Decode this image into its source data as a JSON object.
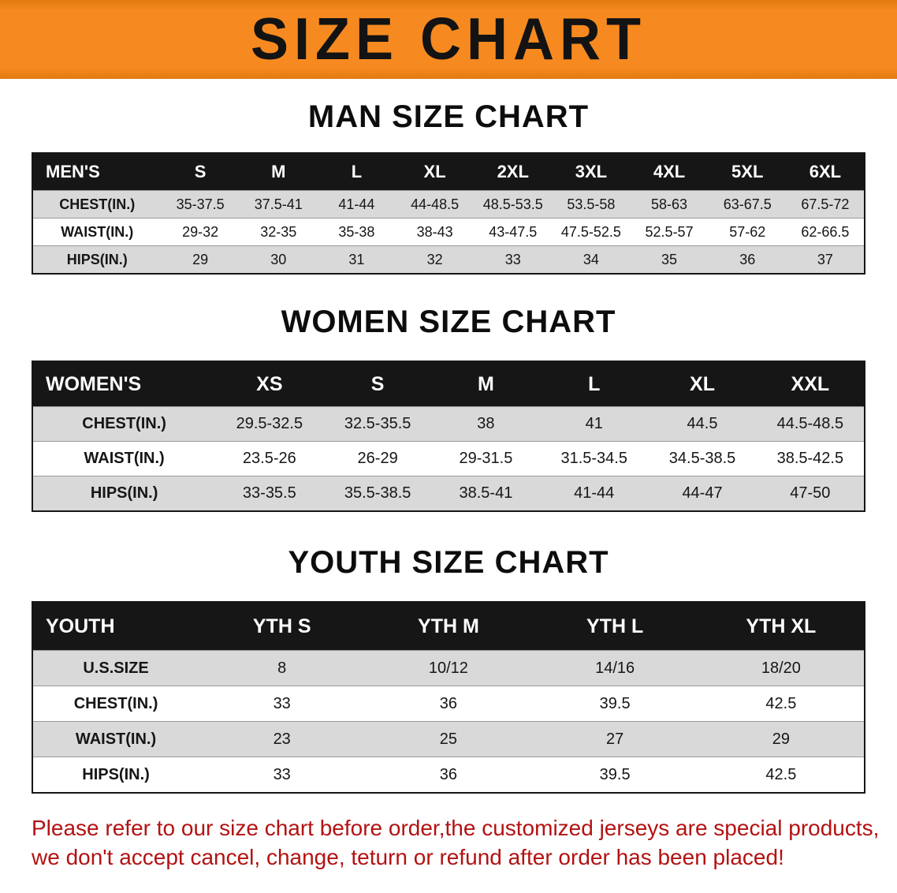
{
  "banner": {
    "title": "SIZE CHART"
  },
  "colors": {
    "banner_bg": "#F68A20",
    "banner_text": "#131313",
    "table_header_bg": "#161616",
    "row_alt_gray": "#D9D9D9",
    "note_red": "#B31212"
  },
  "sections": [
    {
      "heading": "MAN SIZE CHART",
      "table": {
        "header": [
          "MEN'S",
          "S",
          "M",
          "L",
          "XL",
          "2XL",
          "3XL",
          "4XL",
          "5XL",
          "6XL"
        ],
        "rows": [
          [
            "CHEST(IN.)",
            "35-37.5",
            "37.5-41",
            "41-44",
            "44-48.5",
            "48.5-53.5",
            "53.5-58",
            "58-63",
            "63-67.5",
            "67.5-72"
          ],
          [
            "WAIST(IN.)",
            "29-32",
            "32-35",
            "35-38",
            "38-43",
            "43-47.5",
            "47.5-52.5",
            "52.5-57",
            "57-62",
            "62-66.5"
          ],
          [
            "HIPS(IN.)",
            "29",
            "30",
            "31",
            "32",
            "33",
            "34",
            "35",
            "36",
            "37"
          ]
        ]
      }
    },
    {
      "heading": "WOMEN SIZE CHART",
      "table": {
        "header": [
          "WOMEN'S",
          "XS",
          "S",
          "M",
          "L",
          "XL",
          "XXL"
        ],
        "rows": [
          [
            "CHEST(IN.)",
            "29.5-32.5",
            "32.5-35.5",
            "38",
            "41",
            "44.5",
            "44.5-48.5"
          ],
          [
            "WAIST(IN.)",
            "23.5-26",
            "26-29",
            "29-31.5",
            "31.5-34.5",
            "34.5-38.5",
            "38.5-42.5"
          ],
          [
            "HIPS(IN.)",
            "33-35.5",
            "35.5-38.5",
            "38.5-41",
            "41-44",
            "44-47",
            "47-50"
          ]
        ]
      }
    },
    {
      "heading": "YOUTH SIZE CHART",
      "table": {
        "header": [
          "YOUTH",
          "YTH S",
          "YTH M",
          "YTH L",
          "YTH XL"
        ],
        "rows": [
          [
            "U.S.SIZE",
            "8",
            "10/12",
            "14/16",
            "18/20"
          ],
          [
            "CHEST(IN.)",
            "33",
            "36",
            "39.5",
            "42.5"
          ],
          [
            "WAIST(IN.)",
            "23",
            "25",
            "27",
            "29"
          ],
          [
            "HIPS(IN.)",
            "33",
            "36",
            "39.5",
            "42.5"
          ]
        ]
      }
    }
  ],
  "footnote": {
    "line1": "Please refer to our size chart before order,the customized jerseys are special products,",
    "line2": "we don't accept cancel, change, teturn or refund after order has been placed!"
  }
}
